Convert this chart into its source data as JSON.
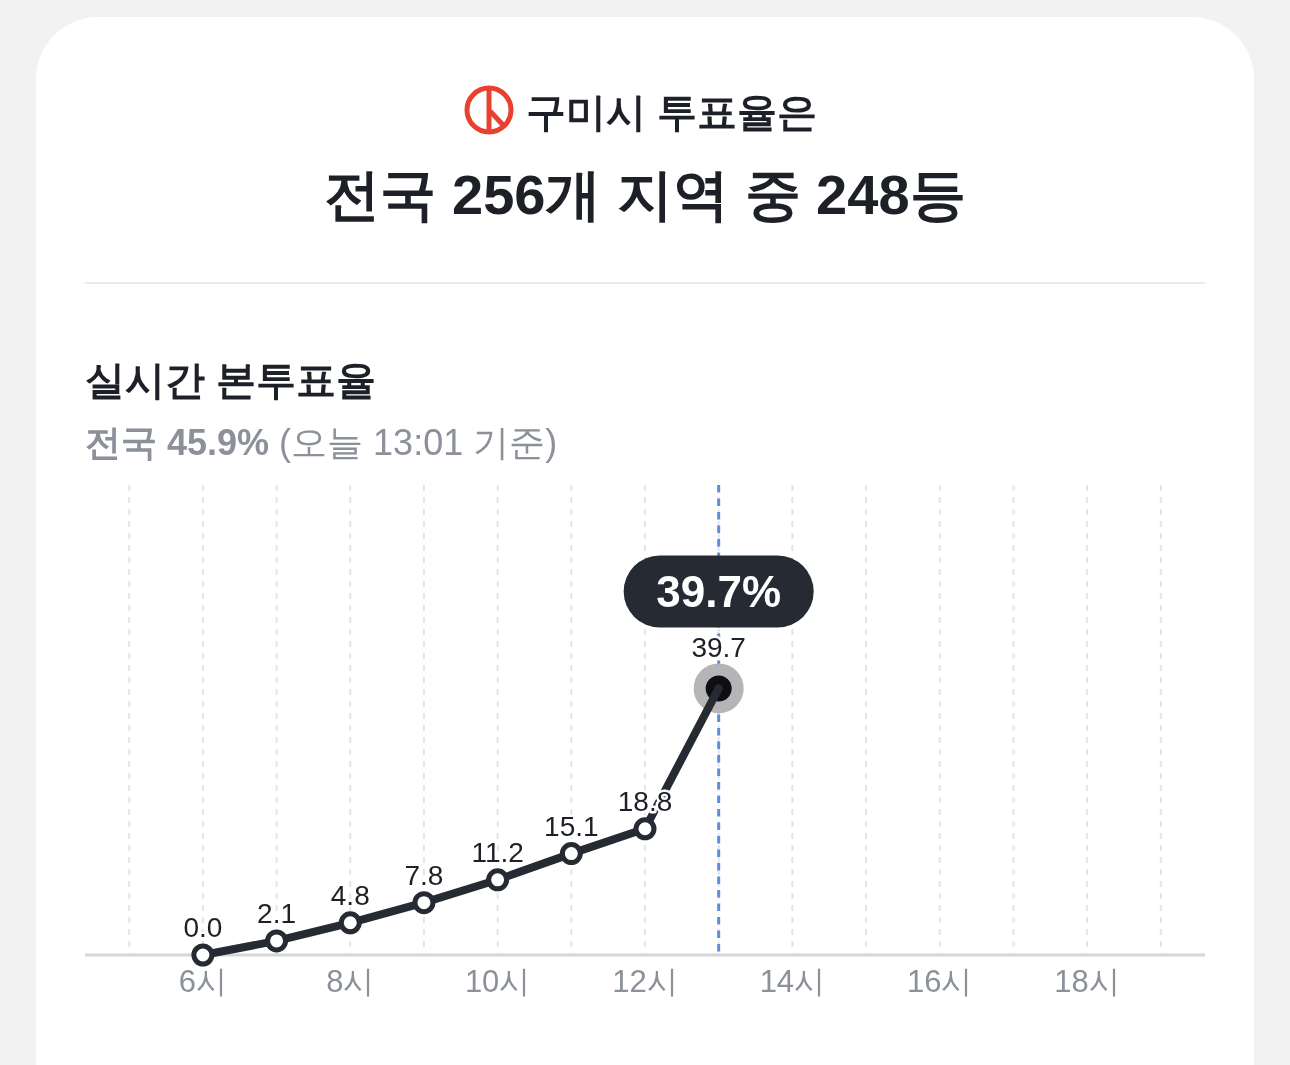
{
  "chart_data": {
    "type": "line",
    "title": "실시간 본투표율",
    "subtitle": "전국 45.9% (오늘 13:01 기준)",
    "annotations": [
      "구미시 투표율은",
      "전국 256개 지역 중 248등",
      {
        "text": "39.7%",
        "x": 13,
        "y": 39.7
      }
    ],
    "x": [
      6,
      7,
      8,
      9,
      10,
      11,
      12,
      13
    ],
    "series": [
      {
        "color": "#262b33",
        "values": [
          0.0,
          2.1,
          4.8,
          7.8,
          11.2,
          15.1,
          18.8,
          39.7
        ],
        "value_labels": [
          "0.0",
          "2.1",
          "4.8",
          "7.8",
          "11.2",
          "15.1",
          "18.8",
          "39.7"
        ]
      }
    ],
    "xlim": [
      4.4,
      19.6
    ],
    "xticks": [
      {
        "value": 5,
        "label": null
      },
      {
        "value": 6,
        "label": "6시"
      },
      {
        "value": 7,
        "label": null
      },
      {
        "value": 8,
        "label": "8시"
      },
      {
        "value": 9,
        "label": null
      },
      {
        "value": 10,
        "label": "10시"
      },
      {
        "value": 11,
        "label": null
      },
      {
        "value": 12,
        "label": "12시"
      },
      {
        "value": 13,
        "label": null
      },
      {
        "value": 14,
        "label": "14시"
      },
      {
        "value": 15,
        "label": null
      },
      {
        "value": 16,
        "label": "16시"
      },
      {
        "value": 17,
        "label": null
      },
      {
        "value": 18,
        "label": "18시"
      },
      {
        "value": 19,
        "label": null
      }
    ],
    "ylim": [
      0,
      70
    ],
    "tick_labels": "x",
    "grid": "x",
    "marker": "circle",
    "line_style": "solid",
    "ref_lines": [
      {
        "axis": "x",
        "value": 13,
        "color": "#5b8fdc",
        "line_style": "dashed"
      }
    ]
  }
}
